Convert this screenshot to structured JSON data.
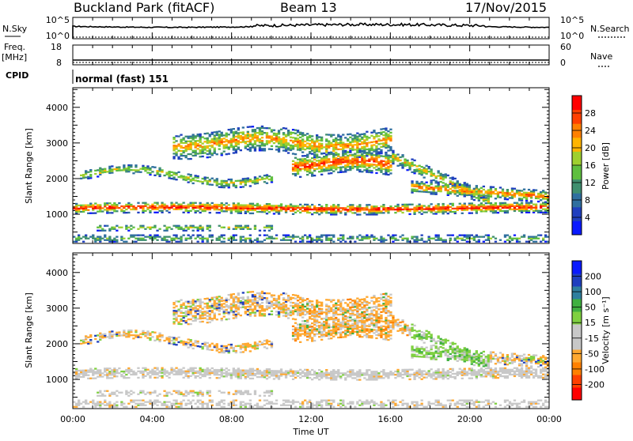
{
  "header": {
    "station": "Buckland Park (fitACF)",
    "beam": "Beam 13",
    "date": "17/Nov/2015"
  },
  "top_panels": {
    "nsky_label": "N.Sky",
    "nsky_ticks": [
      "10^5",
      "10^0"
    ],
    "nsearch_label": "N.Search",
    "nsearch_ticks": [
      "10^5",
      "10^0"
    ],
    "freq_label_1": "Freq.",
    "freq_label_2": "[MHz]",
    "freq_ticks": [
      "18",
      "8"
    ],
    "nave_label": "Nave",
    "nave_ticks": [
      "60",
      "0"
    ],
    "cpid_label": "CPID",
    "cpid_value": "normal (fast) 151"
  },
  "colors": {
    "power_scale": [
      "#0a1aff",
      "#1f3fbf",
      "#2f6f9f",
      "#3f8f6f",
      "#5fbf3f",
      "#9fd02f",
      "#ffb400",
      "#ff8000",
      "#ff4000",
      "#ff0000"
    ],
    "velocity_scale": [
      "#ff0000",
      "#ff4000",
      "#ff8000",
      "#ffa830",
      "#c8c8c8",
      "#c8c8c8",
      "#7fd040",
      "#40b040",
      "#2f7f9f",
      "#1f3fbf",
      "#0a1aff"
    ]
  },
  "chart_data": [
    {
      "type": "heatmap",
      "name": "power",
      "xlabel": "Time UT",
      "ylabel": "Slant Range [km]",
      "x_ticks": [
        "00:00",
        "04:00",
        "08:00",
        "12:00",
        "16:00",
        "20:00",
        "00:00"
      ],
      "y_ticks": [
        "1000",
        "2000",
        "3000",
        "4000"
      ],
      "y_range_km": [
        180,
        4550
      ],
      "colorbar_label": "Power [dB]",
      "colorbar_ticks": [
        "4",
        "8",
        "12",
        "16",
        "20",
        "24",
        "28"
      ],
      "colorbar_range": [
        0,
        32
      ]
    },
    {
      "type": "heatmap",
      "name": "velocity",
      "xlabel": "Time UT",
      "ylabel": "Slant Range [km]",
      "x_ticks": [
        "00:00",
        "04:00",
        "08:00",
        "12:00",
        "16:00",
        "20:00",
        "00:00"
      ],
      "y_ticks": [
        "1000",
        "2000",
        "3000",
        "4000"
      ],
      "y_range_km": [
        180,
        4550
      ],
      "colorbar_label": "Velocity [m s⁻¹]",
      "colorbar_ticks": [
        "-200",
        "-100",
        "-50",
        "-15",
        "15",
        "50",
        "100",
        "200"
      ],
      "colorbar_range": [
        -250,
        250
      ]
    }
  ]
}
